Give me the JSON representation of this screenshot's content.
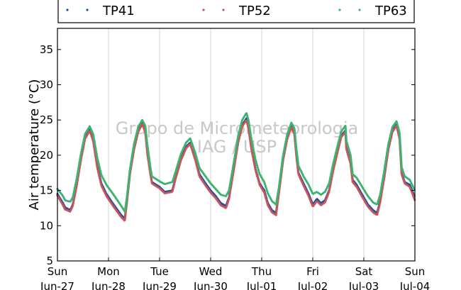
{
  "chart_data": {
    "type": "line",
    "title": "",
    "xlabel": "",
    "ylabel": "Air temperature (°C)",
    "ylim": [
      5,
      38
    ],
    "yticks": [
      5,
      10,
      15,
      20,
      25,
      30,
      35
    ],
    "xlim": [
      0,
      7
    ],
    "x_unit": "days",
    "xticks": [
      {
        "day": "Sun",
        "date": "Jun-27"
      },
      {
        "day": "Mon",
        "date": "Jun-28"
      },
      {
        "day": "Tue",
        "date": "Jun-29"
      },
      {
        "day": "Wed",
        "date": "Jun-30"
      },
      {
        "day": "Thu",
        "date": "Jul-01"
      },
      {
        "day": "Fri",
        "date": "Jul-02"
      },
      {
        "day": "Sat",
        "date": "Jul-03"
      },
      {
        "day": "Sun",
        "date": "Jul-04"
      }
    ],
    "grid": "vertical",
    "legend_position": "top",
    "watermark": [
      "Grupo de Micrometeorologia",
      "IAG / USP"
    ],
    "series": [
      {
        "name": "TP41",
        "color": "#1f4e9c",
        "points": [
          [
            0.0,
            14.5
          ],
          [
            0.1,
            13.3
          ],
          [
            0.15,
            12.6
          ],
          [
            0.25,
            12.2
          ],
          [
            0.3,
            13.0
          ],
          [
            0.38,
            16.0
          ],
          [
            0.46,
            19.5
          ],
          [
            0.54,
            22.5
          ],
          [
            0.63,
            23.7
          ],
          [
            0.7,
            22.3
          ],
          [
            0.78,
            18.5
          ],
          [
            0.86,
            16.0
          ],
          [
            0.96,
            14.5
          ],
          [
            1.1,
            13.0
          ],
          [
            1.25,
            11.5
          ],
          [
            1.32,
            11.0
          ],
          [
            1.36,
            13.5
          ],
          [
            1.42,
            17.5
          ],
          [
            1.5,
            21.0
          ],
          [
            1.58,
            23.5
          ],
          [
            1.66,
            24.6
          ],
          [
            1.72,
            23.5
          ],
          [
            1.76,
            20.5
          ],
          [
            1.82,
            17.5
          ],
          [
            1.85,
            16.2
          ],
          [
            2.0,
            15.5
          ],
          [
            2.1,
            14.8
          ],
          [
            2.25,
            15.0
          ],
          [
            2.32,
            17.0
          ],
          [
            2.42,
            19.5
          ],
          [
            2.52,
            21.2
          ],
          [
            2.6,
            21.8
          ],
          [
            2.7,
            19.5
          ],
          [
            2.78,
            17.3
          ],
          [
            2.9,
            16.0
          ],
          [
            3.0,
            15.0
          ],
          [
            3.1,
            14.2
          ],
          [
            3.2,
            13.2
          ],
          [
            3.3,
            12.8
          ],
          [
            3.36,
            14.0
          ],
          [
            3.45,
            18.0
          ],
          [
            3.54,
            22.0
          ],
          [
            3.62,
            24.3
          ],
          [
            3.7,
            25.2
          ],
          [
            3.74,
            24.0
          ],
          [
            3.8,
            21.0
          ],
          [
            3.88,
            18.0
          ],
          [
            3.96,
            16.0
          ],
          [
            4.05,
            15.0
          ],
          [
            4.12,
            13.2
          ],
          [
            4.2,
            12.2
          ],
          [
            4.28,
            11.8
          ],
          [
            4.34,
            15.0
          ],
          [
            4.42,
            19.5
          ],
          [
            4.5,
            22.5
          ],
          [
            4.58,
            24.2
          ],
          [
            4.64,
            23.2
          ],
          [
            4.68,
            20.0
          ],
          [
            4.72,
            17.5
          ],
          [
            4.82,
            16.0
          ],
          [
            4.92,
            14.5
          ],
          [
            5.0,
            13.0
          ],
          [
            5.08,
            13.8
          ],
          [
            5.16,
            13.2
          ],
          [
            5.24,
            13.6
          ],
          [
            5.32,
            15.0
          ],
          [
            5.4,
            18.0
          ],
          [
            5.48,
            20.5
          ],
          [
            5.56,
            22.8
          ],
          [
            5.64,
            23.5
          ],
          [
            5.66,
            21.0
          ],
          [
            5.7,
            20.0
          ],
          [
            5.74,
            19.0
          ],
          [
            5.78,
            16.5
          ],
          [
            5.86,
            15.8
          ],
          [
            5.96,
            14.5
          ],
          [
            6.08,
            13.0
          ],
          [
            6.18,
            12.2
          ],
          [
            6.26,
            11.8
          ],
          [
            6.32,
            13.5
          ],
          [
            6.4,
            17.0
          ],
          [
            6.48,
            21.0
          ],
          [
            6.56,
            23.5
          ],
          [
            6.64,
            24.4
          ],
          [
            6.7,
            22.5
          ],
          [
            6.74,
            17.5
          ],
          [
            6.8,
            16.2
          ],
          [
            6.9,
            15.8
          ],
          [
            7.0,
            14.0
          ]
        ]
      },
      {
        "name": "TP52",
        "color": "#c8555a",
        "points": [
          [
            0.0,
            14.3
          ],
          [
            0.1,
            13.0
          ],
          [
            0.15,
            12.3
          ],
          [
            0.25,
            12.0
          ],
          [
            0.3,
            12.8
          ],
          [
            0.38,
            15.8
          ],
          [
            0.46,
            19.3
          ],
          [
            0.54,
            22.3
          ],
          [
            0.63,
            23.5
          ],
          [
            0.7,
            22.0
          ],
          [
            0.78,
            18.2
          ],
          [
            0.86,
            15.7
          ],
          [
            0.96,
            14.2
          ],
          [
            1.1,
            12.7
          ],
          [
            1.25,
            11.2
          ],
          [
            1.32,
            10.7
          ],
          [
            1.36,
            13.3
          ],
          [
            1.42,
            17.3
          ],
          [
            1.5,
            20.8
          ],
          [
            1.58,
            23.3
          ],
          [
            1.66,
            24.4
          ],
          [
            1.72,
            23.3
          ],
          [
            1.76,
            20.3
          ],
          [
            1.82,
            17.3
          ],
          [
            1.85,
            16.0
          ],
          [
            2.0,
            15.3
          ],
          [
            2.1,
            14.6
          ],
          [
            2.25,
            14.8
          ],
          [
            2.32,
            16.8
          ],
          [
            2.42,
            19.3
          ],
          [
            2.52,
            21.0
          ],
          [
            2.6,
            21.6
          ],
          [
            2.7,
            19.3
          ],
          [
            2.78,
            17.0
          ],
          [
            2.9,
            15.7
          ],
          [
            3.0,
            14.7
          ],
          [
            3.1,
            13.9
          ],
          [
            3.2,
            12.9
          ],
          [
            3.3,
            12.5
          ],
          [
            3.36,
            13.8
          ],
          [
            3.45,
            17.8
          ],
          [
            3.54,
            21.8
          ],
          [
            3.62,
            24.1
          ],
          [
            3.7,
            25.0
          ],
          [
            3.74,
            23.8
          ],
          [
            3.8,
            20.8
          ],
          [
            3.88,
            17.8
          ],
          [
            3.96,
            15.8
          ],
          [
            4.05,
            14.7
          ],
          [
            4.12,
            12.9
          ],
          [
            4.2,
            11.9
          ],
          [
            4.28,
            11.5
          ],
          [
            4.34,
            14.8
          ],
          [
            4.42,
            19.3
          ],
          [
            4.5,
            22.3
          ],
          [
            4.58,
            24.0
          ],
          [
            4.64,
            23.0
          ],
          [
            4.68,
            19.8
          ],
          [
            4.72,
            17.3
          ],
          [
            4.82,
            15.7
          ],
          [
            4.92,
            14.2
          ],
          [
            5.0,
            12.7
          ],
          [
            5.08,
            13.5
          ],
          [
            5.16,
            12.9
          ],
          [
            5.24,
            13.3
          ],
          [
            5.32,
            14.8
          ],
          [
            5.4,
            17.8
          ],
          [
            5.48,
            20.3
          ],
          [
            5.56,
            22.6
          ],
          [
            5.64,
            23.3
          ],
          [
            5.66,
            20.8
          ],
          [
            5.7,
            19.8
          ],
          [
            5.74,
            18.8
          ],
          [
            5.78,
            16.2
          ],
          [
            5.86,
            15.5
          ],
          [
            5.96,
            14.2
          ],
          [
            6.08,
            12.7
          ],
          [
            6.18,
            11.9
          ],
          [
            6.26,
            11.5
          ],
          [
            6.32,
            13.3
          ],
          [
            6.4,
            16.8
          ],
          [
            6.48,
            20.8
          ],
          [
            6.56,
            23.3
          ],
          [
            6.64,
            24.2
          ],
          [
            6.7,
            22.3
          ],
          [
            6.74,
            17.3
          ],
          [
            6.8,
            16.0
          ],
          [
            6.9,
            15.5
          ],
          [
            7.0,
            13.6
          ]
        ]
      },
      {
        "name": "TP63",
        "color": "#3cb371",
        "points": [
          [
            0.0,
            15.2
          ],
          [
            0.1,
            14.3
          ],
          [
            0.15,
            13.6
          ],
          [
            0.25,
            13.4
          ],
          [
            0.3,
            14.0
          ],
          [
            0.38,
            16.8
          ],
          [
            0.46,
            20.2
          ],
          [
            0.54,
            23.0
          ],
          [
            0.63,
            24.1
          ],
          [
            0.7,
            23.0
          ],
          [
            0.78,
            19.6
          ],
          [
            0.86,
            17.2
          ],
          [
            0.96,
            15.8
          ],
          [
            1.1,
            14.4
          ],
          [
            1.25,
            12.8
          ],
          [
            1.32,
            12.0
          ],
          [
            1.36,
            14.0
          ],
          [
            1.42,
            18.0
          ],
          [
            1.5,
            21.6
          ],
          [
            1.58,
            24.0
          ],
          [
            1.66,
            25.0
          ],
          [
            1.72,
            24.2
          ],
          [
            1.76,
            21.5
          ],
          [
            1.82,
            18.3
          ],
          [
            1.85,
            17.0
          ],
          [
            2.0,
            16.3
          ],
          [
            2.1,
            15.9
          ],
          [
            2.25,
            16.2
          ],
          [
            2.32,
            17.8
          ],
          [
            2.42,
            20.2
          ],
          [
            2.52,
            21.8
          ],
          [
            2.6,
            22.4
          ],
          [
            2.7,
            20.3
          ],
          [
            2.78,
            18.2
          ],
          [
            2.9,
            17.0
          ],
          [
            3.0,
            16.0
          ],
          [
            3.1,
            15.2
          ],
          [
            3.2,
            14.4
          ],
          [
            3.3,
            14.2
          ],
          [
            3.36,
            15.0
          ],
          [
            3.45,
            18.8
          ],
          [
            3.54,
            22.8
          ],
          [
            3.62,
            25.0
          ],
          [
            3.7,
            26.0
          ],
          [
            3.74,
            25.0
          ],
          [
            3.8,
            22.2
          ],
          [
            3.88,
            19.3
          ],
          [
            3.96,
            17.3
          ],
          [
            4.05,
            16.2
          ],
          [
            4.12,
            14.6
          ],
          [
            4.2,
            13.5
          ],
          [
            4.28,
            13.0
          ],
          [
            4.34,
            15.6
          ],
          [
            4.42,
            20.0
          ],
          [
            4.5,
            23.0
          ],
          [
            4.58,
            24.6
          ],
          [
            4.64,
            23.8
          ],
          [
            4.68,
            20.8
          ],
          [
            4.72,
            18.5
          ],
          [
            4.82,
            17.0
          ],
          [
            4.92,
            15.8
          ],
          [
            5.0,
            14.5
          ],
          [
            5.08,
            14.8
          ],
          [
            5.16,
            14.4
          ],
          [
            5.24,
            14.8
          ],
          [
            5.32,
            16.0
          ],
          [
            5.4,
            18.8
          ],
          [
            5.48,
            21.2
          ],
          [
            5.56,
            23.4
          ],
          [
            5.64,
            24.2
          ],
          [
            5.66,
            22.0
          ],
          [
            5.7,
            21.0
          ],
          [
            5.74,
            20.0
          ],
          [
            5.78,
            17.3
          ],
          [
            5.86,
            16.8
          ],
          [
            5.96,
            15.6
          ],
          [
            6.08,
            14.2
          ],
          [
            6.18,
            13.3
          ],
          [
            6.26,
            13.0
          ],
          [
            6.32,
            14.4
          ],
          [
            6.4,
            17.8
          ],
          [
            6.48,
            21.6
          ],
          [
            6.56,
            24.0
          ],
          [
            6.64,
            24.8
          ],
          [
            6.7,
            23.2
          ],
          [
            6.74,
            18.3
          ],
          [
            6.8,
            17.0
          ],
          [
            6.9,
            16.5
          ],
          [
            7.0,
            15.0
          ]
        ]
      }
    ]
  }
}
